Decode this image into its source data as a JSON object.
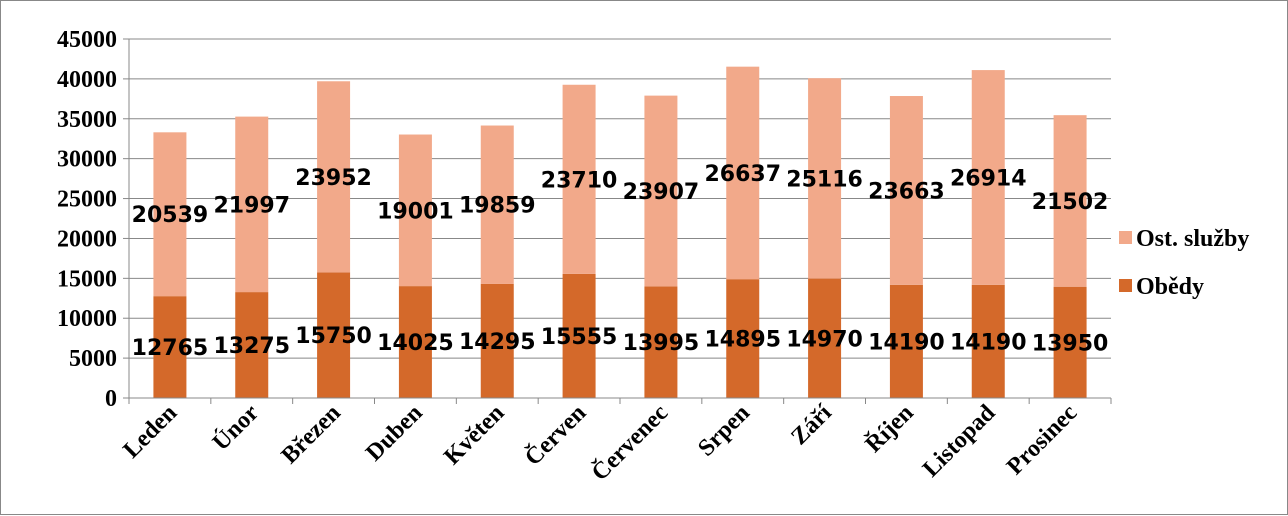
{
  "chart_data": {
    "type": "bar",
    "stacked": true,
    "categories": [
      "Leden",
      "Únor",
      "Březen",
      "Duben",
      "Květen",
      "Červen",
      "Červenec",
      "Srpen",
      "Září",
      "Říjen",
      "Listopad",
      "Prosinec"
    ],
    "series": [
      {
        "name": "Obědy",
        "color": "#d4692a",
        "values": [
          12765,
          13275,
          15750,
          14025,
          14295,
          15555,
          13995,
          14895,
          14970,
          14190,
          14190,
          13950
        ]
      },
      {
        "name": "Ost. služby",
        "color": "#f2a98a",
        "values": [
          20539,
          21997,
          23952,
          19001,
          19859,
          23710,
          23907,
          26637,
          25116,
          23663,
          26914,
          21502
        ]
      }
    ],
    "ylim": [
      0,
      45000
    ],
    "yticks": [
      0,
      5000,
      10000,
      15000,
      20000,
      25000,
      30000,
      35000,
      40000,
      45000
    ],
    "grid": true,
    "legend_position": "right",
    "legend_order": [
      "Ost. služby",
      "Obědy"
    ],
    "data_labels": true
  }
}
